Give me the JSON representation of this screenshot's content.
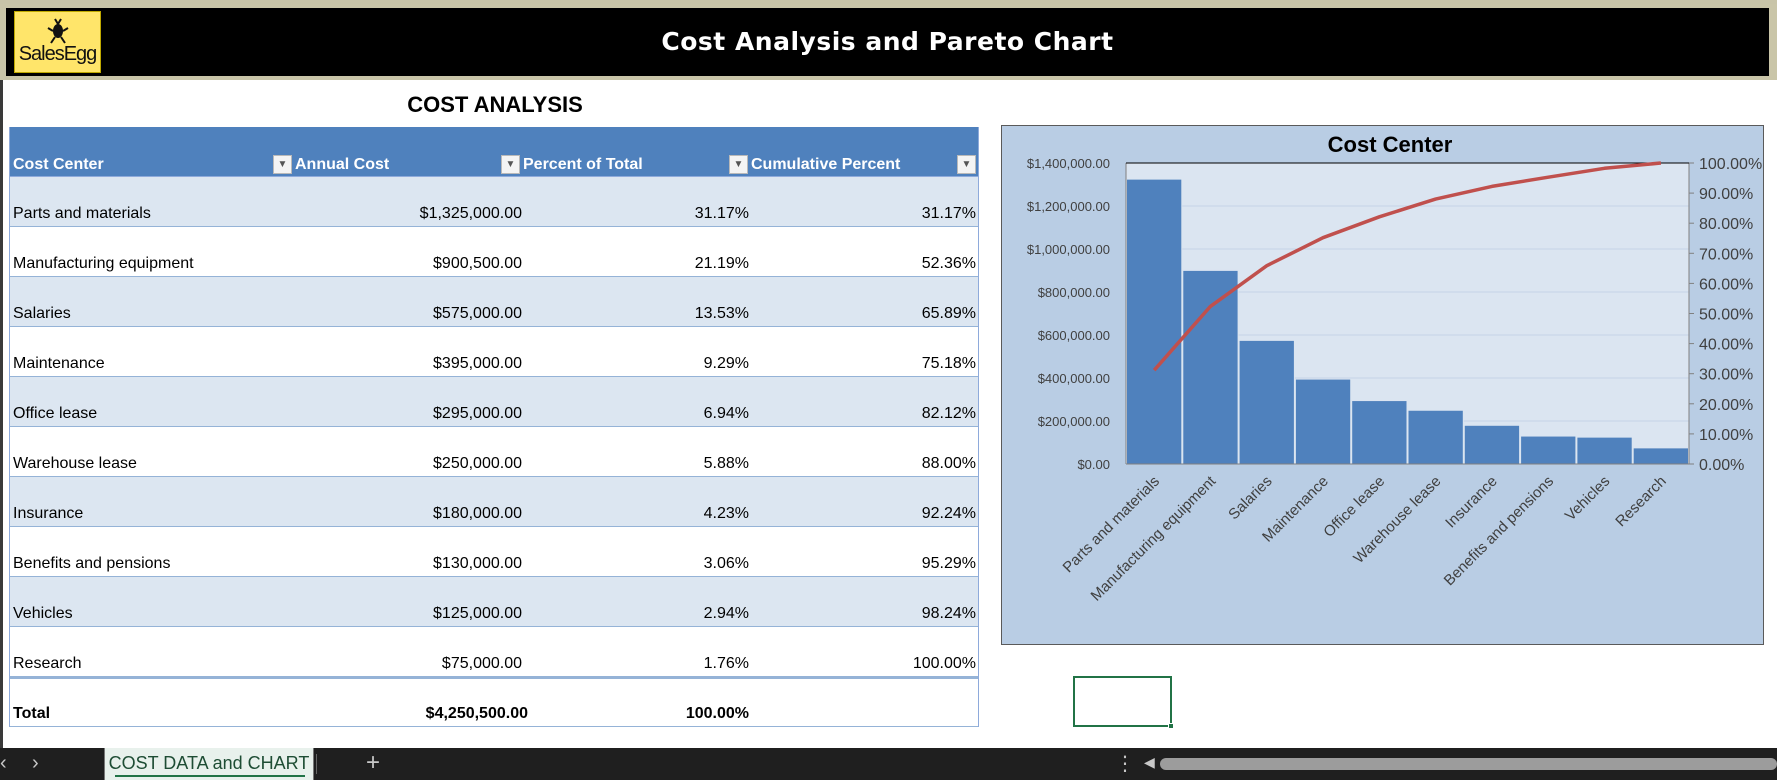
{
  "header": {
    "title": "Cost Analysis and Pareto Chart",
    "logo_text": "SalesEgg"
  },
  "section": {
    "title": "COST ANALYSIS"
  },
  "table": {
    "headers": [
      "Cost Center",
      "Annual Cost",
      "Percent of Total",
      "Cumulative Percent"
    ],
    "rows": [
      [
        "Parts and materials",
        "$1,325,000.00",
        "31.17%",
        "31.17%"
      ],
      [
        "Manufacturing equipment",
        "$900,500.00",
        "21.19%",
        "52.36%"
      ],
      [
        "Salaries",
        "$575,000.00",
        "13.53%",
        "65.89%"
      ],
      [
        "Maintenance",
        "$395,000.00",
        "9.29%",
        "75.18%"
      ],
      [
        "Office lease",
        "$295,000.00",
        "6.94%",
        "82.12%"
      ],
      [
        "Warehouse lease",
        "$250,000.00",
        "5.88%",
        "88.00%"
      ],
      [
        "Insurance",
        "$180,000.00",
        "4.23%",
        "92.24%"
      ],
      [
        "Benefits and pensions",
        "$130,000.00",
        "3.06%",
        "95.29%"
      ],
      [
        "Vehicles",
        "$125,000.00",
        "2.94%",
        "98.24%"
      ],
      [
        "Research",
        "$75,000.00",
        "1.76%",
        "100.00%"
      ]
    ],
    "total": [
      "Total",
      "$4,250,500.00",
      "100.00%"
    ]
  },
  "chart_data": {
    "type": "bar",
    "title": "Cost Center",
    "categories": [
      "Parts and materials",
      "Manufacturing equipment",
      "Salaries",
      "Maintenance",
      "Office lease",
      "Warehouse lease",
      "Insurance",
      "Benefits and pensions",
      "Vehicles",
      "Research"
    ],
    "series": [
      {
        "name": "Annual Cost",
        "type": "bar",
        "axis": "left",
        "values": [
          1325000,
          900500,
          575000,
          395000,
          295000,
          250000,
          180000,
          130000,
          125000,
          75000
        ],
        "color": "#4f81bd"
      },
      {
        "name": "Cumulative Percent",
        "type": "line",
        "axis": "right",
        "values": [
          31.17,
          52.36,
          65.89,
          75.18,
          82.12,
          88.0,
          92.24,
          95.29,
          98.24,
          100.0
        ],
        "color": "#c0504d"
      }
    ],
    "ylim": [
      0,
      1400000
    ],
    "y_ticks": [
      "$0.00",
      "$200,000.00",
      "$400,000.00",
      "$600,000.00",
      "$800,000.00",
      "$1,000,000.00",
      "$1,200,000.00",
      "$1,400,000.00"
    ],
    "y2lim": [
      0,
      100
    ],
    "y2_ticks": [
      "0.00%",
      "10.00%",
      "20.00%",
      "30.00%",
      "40.00%",
      "50.00%",
      "60.00%",
      "70.00%",
      "80.00%",
      "90.00%",
      "100.00%"
    ]
  },
  "sheet_tabs": {
    "active": "COST DATA and CHART",
    "add_label": "+"
  },
  "colors": {
    "header_bg": "#000000",
    "table_header": "#4f81bd",
    "band": "#dce6f1",
    "chart_bg": "#b9cde4",
    "bar": "#4f81bd",
    "line": "#c0504d",
    "tab_accent": "#217346"
  }
}
